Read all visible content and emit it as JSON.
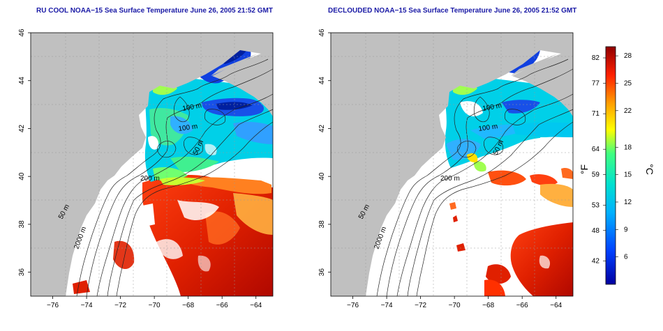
{
  "maps": [
    {
      "title": "RU COOL NOAA−15 Sea Surface Temperature June 26, 2005 21:52 GMT",
      "contour_labels": [
        "100 m",
        "100 m",
        "50 m",
        "200 m",
        "50 m",
        "2000 m"
      ]
    },
    {
      "title": "DECLOUDED NOAA−15 Sea Surface Temperature June 26, 2005 21:52 GMT",
      "contour_labels": [
        "100 m",
        "100 m",
        "50 m",
        "200 m",
        "50 m",
        "2000 m"
      ]
    }
  ],
  "axes": {
    "lon_ticks": [
      "−76",
      "−74",
      "−72",
      "−70",
      "−68",
      "−66",
      "−64"
    ],
    "lat_ticks": [
      "36",
      "38",
      "40",
      "42",
      "44",
      "46"
    ],
    "lon_range": [
      -77.3,
      -63
    ],
    "lat_range": [
      35,
      46
    ]
  },
  "colorbar": {
    "label_f": "°F",
    "label_c": "°C",
    "f_ticks": [
      "82",
      "77",
      "71",
      "64",
      "59",
      "53",
      "48",
      "42"
    ],
    "c_ticks": [
      "28",
      "25",
      "22",
      "18",
      "15",
      "12",
      "9",
      "6"
    ],
    "c_range": [
      3,
      29
    ],
    "colors": [
      "#0000a0",
      "#0040ff",
      "#00b0ff",
      "#00e0d0",
      "#40ff80",
      "#ffff00",
      "#ffa000",
      "#ff2000",
      "#900000"
    ]
  },
  "style": {
    "land": "#c0c0c0",
    "ocean": "#ffffff",
    "title_color": "#1a1aa6"
  }
}
